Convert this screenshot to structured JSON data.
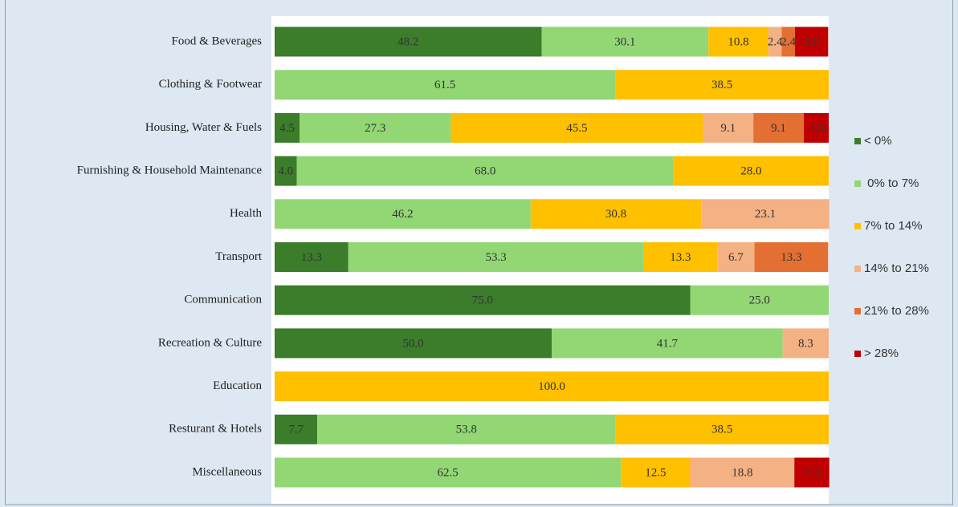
{
  "chart_data": {
    "type": "stacked-bar-horizontal",
    "categories": [
      "Food & Beverages",
      "Clothing & Footwear",
      "Housing, Water & Fuels",
      "Furnishing & Household Maintenance",
      "Health",
      "Transport",
      "Communication",
      "Recreation & Culture",
      "Education",
      "Resturant & Hotels",
      "Miscellaneous"
    ],
    "xlim": [
      0,
      100
    ],
    "series": [
      {
        "name": "< 0%",
        "color": "#3b7d2a",
        "values": [
          48.2,
          null,
          4.5,
          4.0,
          null,
          13.3,
          75.0,
          50.0,
          null,
          7.7,
          null
        ],
        "value_labels": [
          "48.2",
          null,
          "4.5",
          "4.0",
          null,
          "13.3",
          "75.0",
          "50.0",
          null,
          "7.7",
          null
        ]
      },
      {
        "name": " 0% to 7%",
        "color": "#92d774",
        "values": [
          30.1,
          61.5,
          27.3,
          68.0,
          46.2,
          53.3,
          25.0,
          41.7,
          null,
          53.8,
          62.5
        ],
        "value_labels": [
          "30.1",
          "61.5",
          "27.3",
          "68.0",
          "46.2",
          "53.3",
          "25.0",
          "41.7",
          null,
          "53.8",
          "62.5"
        ]
      },
      {
        "name": "7% to 14%",
        "color": "#ffc000",
        "values": [
          10.8,
          38.5,
          45.5,
          28.0,
          30.8,
          13.3,
          null,
          null,
          100.0,
          38.5,
          12.5
        ],
        "value_labels": [
          "10.8",
          "38.5",
          "45.5",
          "28.0",
          "30.8",
          "13.3",
          null,
          null,
          "100.0",
          "38.5",
          "12.5"
        ]
      },
      {
        "name": "14% to 21%",
        "color": "#f4b183",
        "values": [
          2.4,
          null,
          9.1,
          null,
          23.1,
          6.7,
          null,
          8.3,
          null,
          null,
          18.8
        ],
        "value_labels": [
          "2.4",
          null,
          "9.1",
          null,
          "23.1",
          "6.7",
          null,
          "8.3",
          null,
          null,
          "18.8"
        ]
      },
      {
        "name": "21% to 28%",
        "color": "#e46f32",
        "values": [
          2.4,
          null,
          9.1,
          null,
          null,
          13.3,
          null,
          null,
          null,
          null,
          null
        ],
        "value_labels": [
          "2.4",
          null,
          "9.1",
          null,
          null,
          "13.3",
          null,
          null,
          null,
          null,
          null
        ]
      },
      {
        "name": "> 28%",
        "color": "#c00000",
        "values": [
          6.0,
          null,
          4.5,
          null,
          null,
          null,
          null,
          null,
          null,
          null,
          6.3
        ],
        "value_labels": [
          "6.0",
          null,
          "4.5",
          null,
          null,
          null,
          null,
          null,
          null,
          null,
          "6.3"
        ]
      }
    ]
  }
}
